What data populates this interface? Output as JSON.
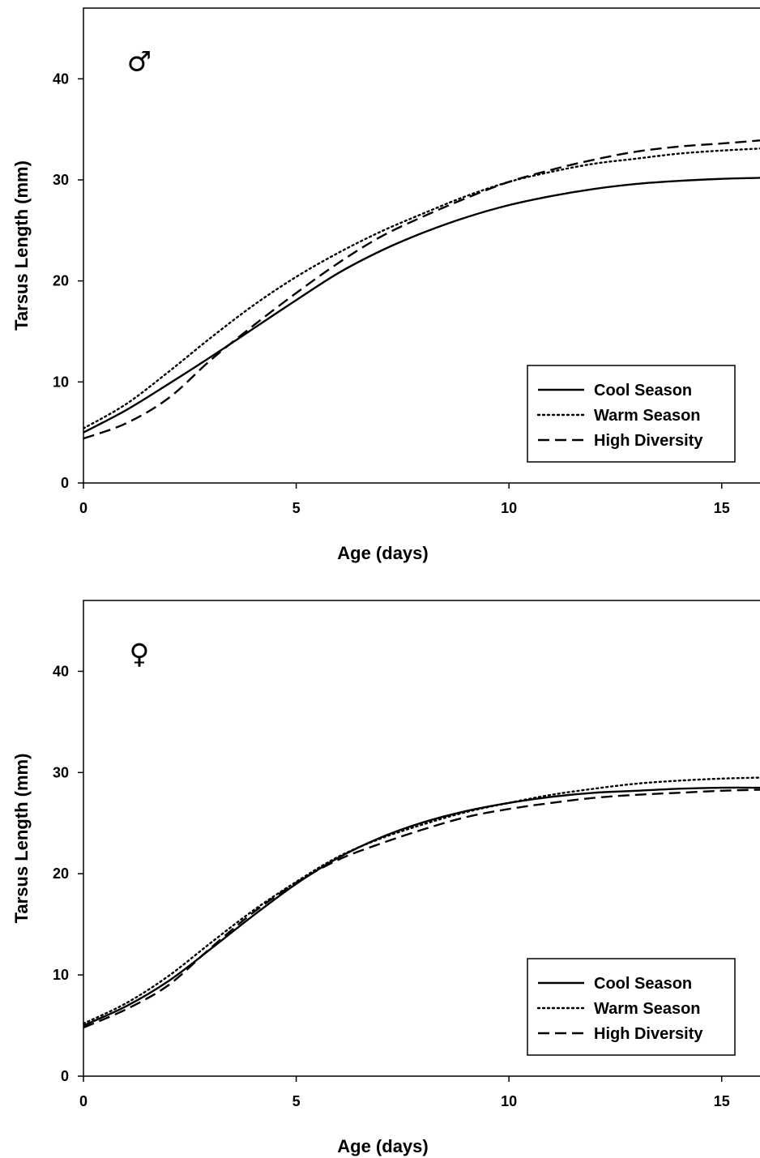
{
  "chart_data": [
    {
      "type": "line",
      "annotation": "♂",
      "xlabel": "Age (days)",
      "ylabel": "Tarsus Length (mm)",
      "xlim": [
        0,
        15.9
      ],
      "ylim": [
        0,
        47
      ],
      "xticks": [
        "0",
        "5",
        "10",
        "15"
      ],
      "yticks": [
        "0",
        "10",
        "20",
        "30",
        "40"
      ],
      "xtick_values": [
        0,
        5,
        10,
        15
      ],
      "ytick_values": [
        0,
        10,
        20,
        30,
        40
      ],
      "grid": false,
      "legend_position": "bottom-right",
      "series": [
        {
          "name": "Cool Season",
          "style": "solid",
          "x": [
            0,
            1,
            2,
            3,
            4,
            5,
            6,
            7,
            8,
            9,
            10,
            11,
            12,
            13,
            14,
            15,
            15.9
          ],
          "y": [
            5.0,
            7.2,
            9.8,
            12.5,
            15.3,
            18.1,
            20.8,
            23.0,
            24.8,
            26.3,
            27.5,
            28.4,
            29.1,
            29.6,
            29.9,
            30.1,
            30.2
          ]
        },
        {
          "name": "Warm Season",
          "style": "dotted",
          "x": [
            0,
            1,
            2,
            3,
            4,
            5,
            6,
            7,
            8,
            9,
            10,
            11,
            12,
            13,
            14,
            15,
            15.9
          ],
          "y": [
            5.4,
            7.8,
            11.0,
            14.4,
            17.6,
            20.4,
            22.8,
            24.9,
            26.7,
            28.4,
            29.8,
            30.8,
            31.6,
            32.1,
            32.6,
            32.9,
            33.1
          ]
        },
        {
          "name": "High Diversity",
          "style": "dashed",
          "x": [
            0,
            1,
            2,
            3,
            4,
            5,
            6,
            7,
            8,
            9,
            10,
            11,
            12,
            13,
            14,
            15,
            15.9
          ],
          "y": [
            4.4,
            5.9,
            8.4,
            12.2,
            15.6,
            18.8,
            21.8,
            24.4,
            26.4,
            28.2,
            29.8,
            31.0,
            32.0,
            32.8,
            33.3,
            33.6,
            33.9
          ]
        }
      ]
    },
    {
      "type": "line",
      "annotation": "♀",
      "xlabel": "Age (days)",
      "ylabel": "Tarsus Length (mm)",
      "xlim": [
        0,
        15.9
      ],
      "ylim": [
        0,
        47
      ],
      "xticks": [
        "0",
        "5",
        "10",
        "15"
      ],
      "yticks": [
        "0",
        "10",
        "20",
        "30",
        "40"
      ],
      "xtick_values": [
        0,
        5,
        10,
        15
      ],
      "ytick_values": [
        0,
        10,
        20,
        30,
        40
      ],
      "grid": false,
      "legend_position": "bottom-right",
      "series": [
        {
          "name": "Cool Season",
          "style": "solid",
          "x": [
            0,
            1,
            2,
            3,
            4,
            5,
            6,
            7,
            8,
            9,
            10,
            11,
            12,
            13,
            14,
            15,
            15.9
          ],
          "y": [
            5.0,
            6.9,
            9.4,
            12.6,
            15.9,
            19.0,
            21.6,
            23.6,
            25.1,
            26.2,
            27.0,
            27.6,
            28.0,
            28.2,
            28.4,
            28.5,
            28.5
          ]
        },
        {
          "name": "Warm Season",
          "style": "dotted",
          "x": [
            0,
            1,
            2,
            3,
            4,
            5,
            6,
            7,
            8,
            9,
            10,
            11,
            12,
            13,
            14,
            15,
            15.9
          ],
          "y": [
            5.2,
            7.2,
            9.9,
            13.2,
            16.4,
            19.2,
            21.7,
            23.5,
            24.9,
            26.1,
            27.0,
            27.8,
            28.4,
            28.9,
            29.2,
            29.4,
            29.5
          ]
        },
        {
          "name": "High Diversity",
          "style": "dashed",
          "x": [
            0,
            1,
            2,
            3,
            4,
            5,
            6,
            7,
            8,
            9,
            10,
            11,
            12,
            13,
            14,
            15,
            15.9
          ],
          "y": [
            4.8,
            6.6,
            9.0,
            12.7,
            16.2,
            19.1,
            21.4,
            23.0,
            24.4,
            25.6,
            26.4,
            27.0,
            27.5,
            27.8,
            28.0,
            28.2,
            28.3
          ]
        }
      ]
    }
  ]
}
